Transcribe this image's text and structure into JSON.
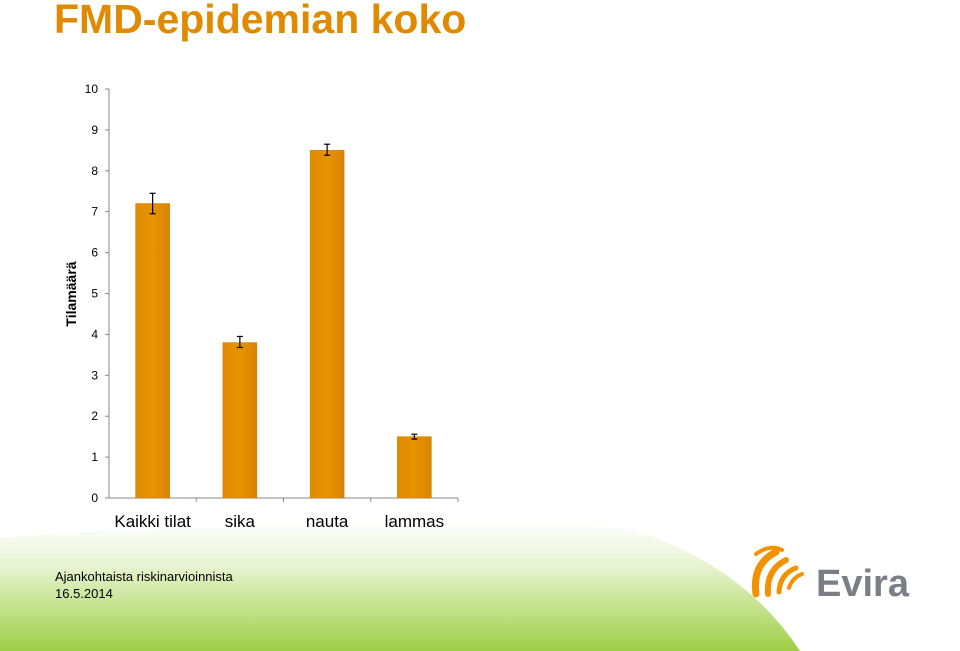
{
  "slide": {
    "title": "FMD-epidemian koko",
    "footer_line1": "Ajankohtaista riskinarvioinnista",
    "footer_line2": "16.5.2014",
    "logo_text": "Evira"
  },
  "colors": {
    "title": "#e08a00",
    "bar": "#e08a00",
    "bar_edge": "#c87a00",
    "logo_orange": "#f39200",
    "logo_gray": "#7a7f86",
    "footer_green": "#9fcf45"
  },
  "chart_data": {
    "type": "bar",
    "title": "",
    "xlabel": "",
    "ylabel": "Tilamäärä",
    "ylim": [
      0,
      10
    ],
    "yticks": [
      "0",
      "1",
      "2",
      "3",
      "4",
      "5",
      "6",
      "7",
      "8",
      "9",
      "10"
    ],
    "categories": [
      "Kaikki tilat",
      "sika",
      "nauta",
      "lammas"
    ],
    "values": [
      7.2,
      3.8,
      8.5,
      1.5
    ],
    "error_low": [
      6.95,
      3.68,
      8.38,
      1.44
    ],
    "error_high": [
      7.45,
      3.95,
      8.65,
      1.56
    ],
    "grid": false,
    "legend": "none"
  }
}
